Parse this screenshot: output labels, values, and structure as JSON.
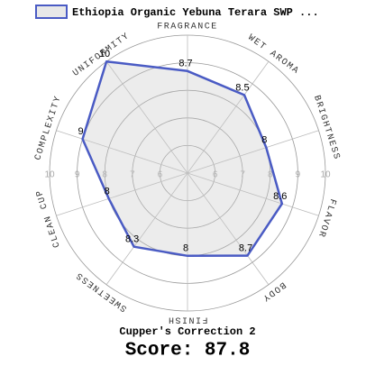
{
  "chart_data": {
    "type": "radar",
    "categories": [
      "FRAGRANCE",
      "WET AROMA",
      "BRIGHTNESS",
      "FLAVOR",
      "BODY",
      "FINISH",
      "SWEETNESS",
      "CLEAN CUP",
      "COMPLEXITY",
      "UNIFORMITY"
    ],
    "series": [
      {
        "name": "Ethiopia Organic Yebuna Terara SWP ...",
        "color": "#4a5bc4",
        "values": [
          8.7,
          8.5,
          8,
          8.6,
          8.7,
          8,
          8.3,
          8,
          9,
          10
        ]
      }
    ],
    "rlim": [
      5,
      10
    ],
    "rticks": [
      6,
      7,
      8,
      9,
      10
    ],
    "grid": true,
    "legend": "top",
    "note": "Cupper's Correction 2",
    "score": "Score: 87.8"
  }
}
